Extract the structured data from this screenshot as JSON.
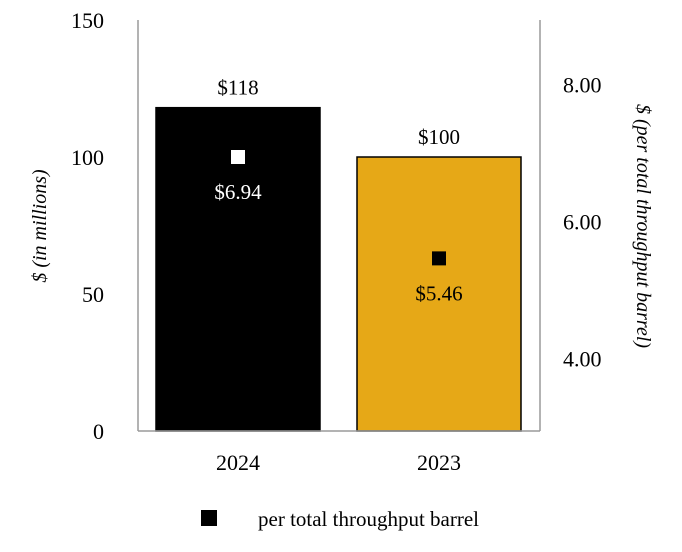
{
  "chart_data": {
    "type": "bar",
    "categories": [
      "2024",
      "2023"
    ],
    "series": [
      {
        "values": [
          118,
          100
        ],
        "value_labels": [
          "$118",
          "$100"
        ],
        "colors": [
          "#000000",
          "#E6A817"
        ],
        "axis": "left"
      },
      {
        "name": "per total throughput barrel",
        "type": "scatter",
        "values": [
          6.94,
          5.46
        ],
        "value_labels": [
          "$6.94",
          "$5.46"
        ],
        "marker_colors": [
          "#FFFFFF",
          "#000000"
        ],
        "axis": "right"
      }
    ],
    "ylabel": "$ (in millions)",
    "ylim": [
      0,
      150
    ],
    "yticks": [
      "0",
      "50",
      "100",
      "150"
    ],
    "ylabel_right": "$ (per total throughput barrel)",
    "ylim_right": [
      2.94,
      8.94
    ],
    "yticks_right": [
      "4.00",
      "6.00",
      "8.00"
    ],
    "grid": false,
    "legend": {
      "placement": "bottom-center",
      "marker_color": "#000000"
    }
  }
}
